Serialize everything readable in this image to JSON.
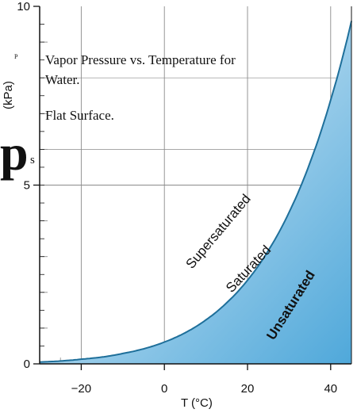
{
  "chart_data": {
    "type": "area",
    "title": "Vapor Pressure vs. Temperature for Water.",
    "subtitle": "Flat Surface.",
    "xlabel": "T (°C)",
    "ylabel_symbol": "p",
    "ylabel_subscript": "s",
    "ylabel_units": "(kPa)",
    "ylabel_small": "P",
    "xlim": [
      -30,
      45
    ],
    "ylim": [
      0,
      10
    ],
    "x_ticks": [
      -20,
      0,
      20,
      40
    ],
    "x_tick_labels": [
      "−20",
      "0",
      "20",
      "40"
    ],
    "y_ticks": [
      0,
      5,
      10
    ],
    "y_tick_labels": [
      "0",
      "5",
      "10"
    ],
    "grid": true,
    "series": [
      {
        "x": [
          -30,
          -25,
          -20,
          -15,
          -10,
          -5,
          0,
          5,
          10,
          15,
          20,
          25,
          30,
          35,
          40,
          45
        ],
        "y": [
          0.05,
          0.08,
          0.13,
          0.19,
          0.29,
          0.42,
          0.61,
          0.87,
          1.23,
          1.71,
          2.34,
          3.17,
          4.24,
          5.62,
          7.38,
          9.59
        ]
      }
    ],
    "region_labels": {
      "above": "Supersaturated",
      "on_curve": "Saturated",
      "below": "Unsaturated"
    },
    "colors": {
      "curve": "#1e6f9a",
      "fill_light": "#f3f8fc",
      "fill_dark": "#4fa8da",
      "grid": "#8a8a8a",
      "axis": "#111111"
    }
  }
}
